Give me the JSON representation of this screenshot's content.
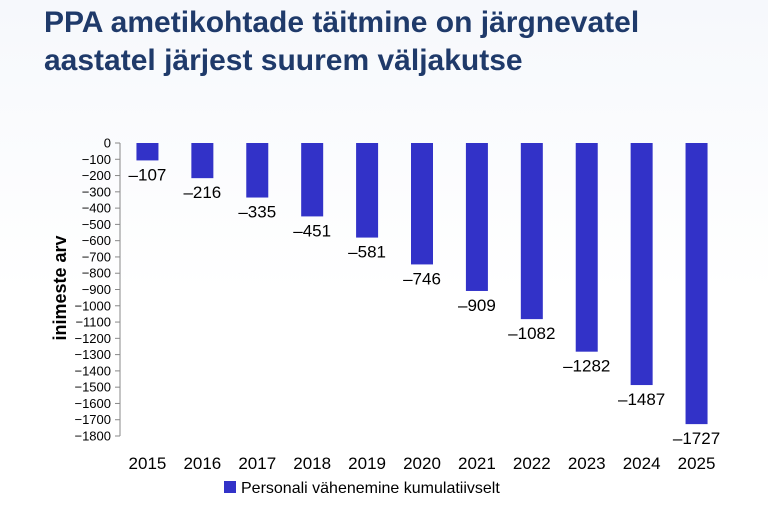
{
  "slide": {
    "title_line1": "PPA ametikohtade täitmine on järgnevatel",
    "title_line2": "aastatel järjest suurem väljakutse"
  },
  "colors": {
    "bar": "#3232c8",
    "title": "#1f3a6a",
    "axis": "#888888"
  },
  "chart_data": {
    "type": "bar",
    "categories": [
      "2015",
      "2016",
      "2017",
      "2018",
      "2019",
      "2020",
      "2021",
      "2022",
      "2023",
      "2024",
      "2025"
    ],
    "series": [
      {
        "name": "Personali vähenemine kumulatiivselt",
        "values": [
          -107,
          -216,
          -335,
          -451,
          -581,
          -746,
          -909,
          -1082,
          -1282,
          -1487,
          -1727
        ]
      }
    ],
    "data_labels": [
      "–107",
      "–216",
      "–335",
      "–451",
      "–581",
      "–746",
      "–909",
      "–1082",
      "–1282",
      "–1487",
      "–1727"
    ],
    "yticks": [
      0,
      -100,
      -200,
      -300,
      -400,
      -500,
      -600,
      -700,
      -800,
      -900,
      -1000,
      -1100,
      -1200,
      -1300,
      -1400,
      -1500,
      -1600,
      -1700,
      -1800
    ],
    "ylim": [
      -1800,
      0
    ],
    "ylabel": "inimeste arv",
    "xlabel": "",
    "legend_position": "bottom",
    "grid": false
  }
}
